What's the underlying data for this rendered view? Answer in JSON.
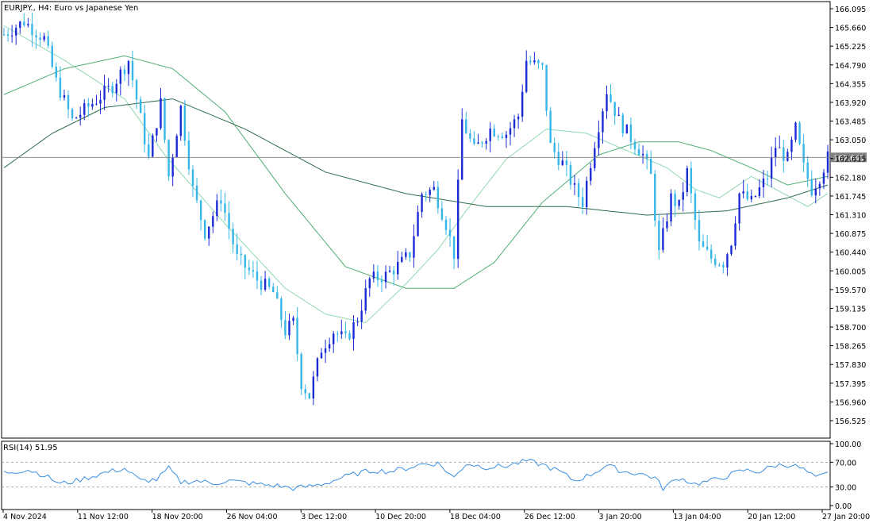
{
  "header": {
    "title": "EURJPY., H4:  Euro vs Japanese Yen"
  },
  "price_label": "162.641",
  "rsi_label": "RSI(14) 51.95",
  "colors": {
    "bull_body": "#1a2bd6",
    "bear_body": "#35b6e8",
    "ma_fast": "#8fd9b0",
    "ma_mid": "#4fae73",
    "ma_slow": "#2f6e4a",
    "rsi_line": "#3a8fe0",
    "price_line": "#808080",
    "grid_line": "#9a9a9a"
  },
  "chart_data": [
    {
      "type": "candlestick",
      "title": "EURJPY., H4:  Euro vs Japanese Yen",
      "xlabel": "",
      "ylabel": "",
      "ylim": [
        156.3,
        166.2
      ],
      "y_ticks": [
        "166.095",
        "165.660",
        "165.225",
        "164.790",
        "164.355",
        "163.920",
        "163.485",
        "163.050",
        "162.615",
        "162.180",
        "161.745",
        "161.310",
        "160.875",
        "160.440",
        "160.005",
        "159.570",
        "159.135",
        "158.700",
        "158.265",
        "157.830",
        "157.395",
        "156.960",
        "156.525"
      ],
      "x_ticks": [
        "4 Nov 2024",
        "11 Nov 12:00",
        "18 Nov 20:00",
        "26 Nov 04:00",
        "3 Dec 12:00",
        "10 Dec 20:00",
        "18 Dec 04:00",
        "26 Dec 12:00",
        "3 Jan 20:00",
        "13 Jan 04:00",
        "20 Jan 12:00",
        "27 Jan 20:00"
      ],
      "current_price": 162.641,
      "close_path": [
        [
          0,
          165.5
        ],
        [
          5,
          165.8
        ],
        [
          10,
          165.4
        ],
        [
          13,
          164.4
        ],
        [
          17,
          163.5
        ],
        [
          22,
          163.9
        ],
        [
          27,
          164.3
        ],
        [
          31,
          164.9
        ],
        [
          33,
          164.0
        ],
        [
          36,
          162.6
        ],
        [
          39,
          163.9
        ],
        [
          41,
          162.2
        ],
        [
          44,
          163.8
        ],
        [
          47,
          161.9
        ],
        [
          50,
          160.9
        ],
        [
          54,
          161.7
        ],
        [
          58,
          160.3
        ],
        [
          63,
          159.8
        ],
        [
          67,
          159.5
        ],
        [
          70,
          158.6
        ],
        [
          72,
          158.8
        ],
        [
          74,
          157.4
        ],
        [
          76,
          157.1
        ],
        [
          79,
          158.2
        ],
        [
          82,
          158.6
        ],
        [
          85,
          158.4
        ],
        [
          88,
          158.9
        ],
        [
          91,
          159.8
        ],
        [
          95,
          159.9
        ],
        [
          99,
          160.2
        ],
        [
          101,
          160.4
        ],
        [
          104,
          161.8
        ],
        [
          107,
          161.9
        ],
        [
          110,
          161.1
        ],
        [
          112,
          160.4
        ],
        [
          114,
          163.5
        ],
        [
          117,
          162.8
        ],
        [
          121,
          163.3
        ],
        [
          125,
          163.2
        ],
        [
          128,
          163.6
        ],
        [
          130,
          164.9
        ],
        [
          134,
          164.7
        ],
        [
          136,
          162.9
        ],
        [
          139,
          162.5
        ],
        [
          142,
          161.9
        ],
        [
          144,
          161.6
        ],
        [
          147,
          163.0
        ],
        [
          150,
          164.2
        ],
        [
          153,
          163.5
        ],
        [
          156,
          163.1
        ],
        [
          159,
          162.7
        ],
        [
          161,
          162.2
        ],
        [
          163,
          160.4
        ],
        [
          166,
          161.7
        ],
        [
          168,
          161.5
        ],
        [
          170,
          162.3
        ],
        [
          173,
          160.6
        ],
        [
          176,
          160.3
        ],
        [
          179,
          160.2
        ],
        [
          181,
          160.7
        ],
        [
          183,
          161.8
        ],
        [
          186,
          161.6
        ],
        [
          190,
          162.2
        ],
        [
          192,
          162.9
        ],
        [
          195,
          162.6
        ],
        [
          197,
          163.3
        ],
        [
          199,
          162.4
        ],
        [
          201,
          161.9
        ],
        [
          203,
          162.2
        ],
        [
          205,
          162.64
        ]
      ],
      "moving_averages": [
        {
          "role": "fast",
          "values": [
            [
              0,
              165.7
            ],
            [
              15,
              164.9
            ],
            [
              30,
              164.0
            ],
            [
              40,
              162.7
            ],
            [
              55,
              161.1
            ],
            [
              70,
              159.6
            ],
            [
              80,
              159.0
            ],
            [
              90,
              158.8
            ],
            [
              100,
              159.7
            ],
            [
              108,
              160.5
            ],
            [
              115,
              161.4
            ],
            [
              125,
              162.6
            ],
            [
              135,
              163.3
            ],
            [
              145,
              163.2
            ],
            [
              155,
              162.8
            ],
            [
              165,
              162.4
            ],
            [
              172,
              161.9
            ],
            [
              178,
              161.7
            ],
            [
              186,
              162.2
            ],
            [
              192,
              161.9
            ],
            [
              200,
              161.5
            ],
            [
              205,
              161.8
            ]
          ]
        },
        {
          "role": "mid",
          "values": [
            [
              0,
              164.1
            ],
            [
              15,
              164.7
            ],
            [
              30,
              165.0
            ],
            [
              42,
              164.7
            ],
            [
              55,
              163.7
            ],
            [
              70,
              161.8
            ],
            [
              85,
              160.1
            ],
            [
              100,
              159.6
            ],
            [
              112,
              159.6
            ],
            [
              122,
              160.2
            ],
            [
              134,
              161.6
            ],
            [
              148,
              162.7
            ],
            [
              158,
              163.0
            ],
            [
              168,
              163.0
            ],
            [
              176,
              162.8
            ],
            [
              186,
              162.4
            ],
            [
              195,
              162.0
            ],
            [
              205,
              162.2
            ]
          ]
        },
        {
          "role": "slow",
          "values": [
            [
              0,
              162.4
            ],
            [
              12,
              163.2
            ],
            [
              25,
              163.8
            ],
            [
              42,
              164.0
            ],
            [
              60,
              163.3
            ],
            [
              80,
              162.3
            ],
            [
              100,
              161.8
            ],
            [
              120,
              161.5
            ],
            [
              140,
              161.5
            ],
            [
              160,
              161.3
            ],
            [
              180,
              161.4
            ],
            [
              195,
              161.7
            ],
            [
              205,
              162.0
            ]
          ]
        }
      ]
    },
    {
      "type": "line",
      "title": "RSI(14) 51.95",
      "xlabel": "",
      "ylabel": "",
      "ylim": [
        0,
        100
      ],
      "y_ticks": [
        "100.00",
        "70.00",
        "30.00",
        "0.00"
      ],
      "levels": [
        70,
        30
      ],
      "last_value": 51.95,
      "values": [
        [
          0,
          53
        ],
        [
          6,
          58
        ],
        [
          10,
          49
        ],
        [
          14,
          35
        ],
        [
          18,
          40
        ],
        [
          25,
          53
        ],
        [
          30,
          60
        ],
        [
          34,
          40
        ],
        [
          38,
          42
        ],
        [
          41,
          60
        ],
        [
          44,
          38
        ],
        [
          48,
          40
        ],
        [
          52,
          36
        ],
        [
          56,
          40
        ],
        [
          60,
          37
        ],
        [
          64,
          34
        ],
        [
          68,
          32
        ],
        [
          72,
          28
        ],
        [
          76,
          31
        ],
        [
          80,
          36
        ],
        [
          84,
          45
        ],
        [
          88,
          52
        ],
        [
          92,
          57
        ],
        [
          96,
          55
        ],
        [
          100,
          60
        ],
        [
          104,
          67
        ],
        [
          108,
          68
        ],
        [
          112,
          45
        ],
        [
          115,
          68
        ],
        [
          120,
          62
        ],
        [
          125,
          64
        ],
        [
          130,
          72
        ],
        [
          134,
          66
        ],
        [
          138,
          56
        ],
        [
          142,
          40
        ],
        [
          146,
          50
        ],
        [
          150,
          65
        ],
        [
          154,
          55
        ],
        [
          158,
          52
        ],
        [
          162,
          45
        ],
        [
          164,
          28
        ],
        [
          168,
          45
        ],
        [
          172,
          35
        ],
        [
          176,
          40
        ],
        [
          180,
          48
        ],
        [
          184,
          57
        ],
        [
          188,
          55
        ],
        [
          192,
          65
        ],
        [
          196,
          66
        ],
        [
          199,
          58
        ],
        [
          202,
          44
        ],
        [
          205,
          52
        ]
      ]
    }
  ]
}
